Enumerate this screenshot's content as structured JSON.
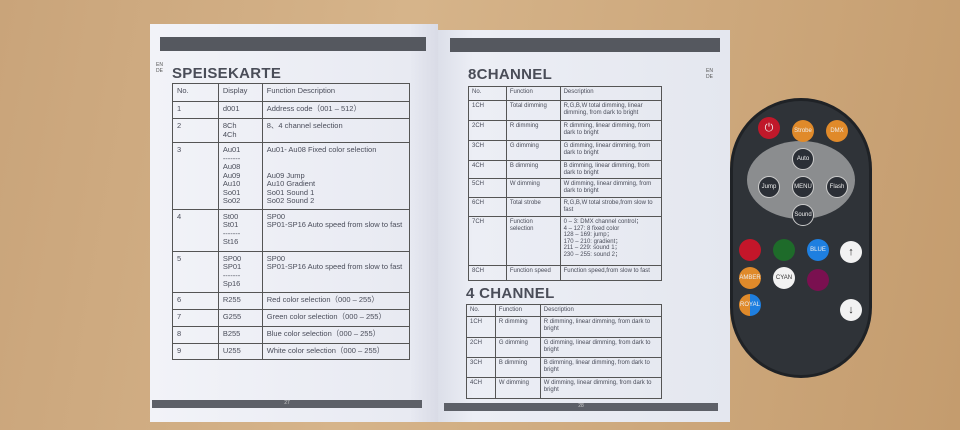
{
  "left_page": {
    "lang": "EN\nDE",
    "title": "SPEISEKARTE",
    "page_number": "27",
    "headers": [
      "No.",
      "Display",
      "Function Description"
    ],
    "rows": [
      [
        "1",
        "d001",
        "Address code（001 – 512）"
      ],
      [
        "2",
        "8Ch\n4Ch",
        "8、4 channel selection"
      ],
      [
        "3",
        "Au01\n-------\nAu08\nAu09\nAu10\nSo01\nSo02",
        "Au01- Au08  Fixed color selection\n\n\nAu09      Jump\nAu10      Gradient\nSo01      Sound 1\nSo02      Sound 2"
      ],
      [
        "4",
        "St00\nSt01\n-------\nSt16",
        "SP00\nSP01-SP16    Auto speed from slow to fast"
      ],
      [
        "5",
        "SP00\nSP01\n-------\nSp16",
        "SP00\nSP01-SP16    Auto speed from slow to fast"
      ],
      [
        "6",
        "R255",
        "Red color selection（000 – 255）"
      ],
      [
        "7",
        "G255",
        "Green color selection（000 – 255）"
      ],
      [
        "8",
        "B255",
        "Blue color selection（000 – 255）"
      ],
      [
        "9",
        "U255",
        "White color selection（000 – 255）"
      ]
    ]
  },
  "right_page": {
    "lang": "EN\nDE",
    "page_number": "28",
    "eight": {
      "title": "8CHANNEL",
      "headers": [
        "No.",
        "Function",
        "Description"
      ],
      "rows": [
        [
          "1CH",
          "Total dimming",
          "R,G,B,W total dimming, linear dimming, from dark to bright"
        ],
        [
          "2CH",
          "R dimming",
          "R dimming, linear dimming, from dark to bright"
        ],
        [
          "3CH",
          "G dimming",
          "G dimming, linear dimming, from dark to bright"
        ],
        [
          "4CH",
          "B dimming",
          "B dimming, linear dimming, from dark to bright"
        ],
        [
          "5CH",
          "W dimming",
          "W dimming, linear dimming, from dark to bright"
        ],
        [
          "6CH",
          "Total strobe",
          "R,G,B,W total strobe,from slow to fast"
        ],
        [
          "7CH",
          "Function selection",
          "0 – 3:  DMX channel control；\n4 – 127:  8 fixed color\n128 – 169:  jump；\n170 – 210:  gradient；\n211 – 229:  sound 1；\n230 – 255:  sound 2；"
        ],
        [
          "8CH",
          "Function speed",
          "Function speed,from slow to fast"
        ]
      ]
    },
    "four": {
      "title": "4 CHANNEL",
      "headers": [
        "No.",
        "Function",
        "Description"
      ],
      "rows": [
        [
          "1CH",
          "R dimming",
          "R dimming, linear dimming, from dark to bright"
        ],
        [
          "2CH",
          "G dimming",
          "G dimming, linear dimming, from dark to bright"
        ],
        [
          "3CH",
          "B dimming",
          "B dimming, linear dimming, from dark to bright"
        ],
        [
          "4CH",
          "W dimming",
          "W dimming, linear dimming, from dark to bright"
        ]
      ]
    }
  },
  "remote": {
    "buttons": {
      "power": "⏻",
      "strobe": "Strobe",
      "dmx": "DMX",
      "auto": "Auto",
      "jump": "Jump",
      "menu": "MENU",
      "flash": "Flash",
      "sound": "Sound",
      "blue": "BLUE",
      "amber": "AMBER",
      "cyan": "CYAN",
      "royal": "ROYAL",
      "up": "↑",
      "down": "↓"
    },
    "colors": {
      "body": "#2f3338",
      "power": "#c0182a",
      "orange": "#e08a2a",
      "red": "#c4162a",
      "green": "#1e6b2a",
      "blue": "#1e7fe0",
      "amber": "#e08a2a",
      "cyan": "#f2f2f2",
      "purple": "#7a1050"
    }
  }
}
